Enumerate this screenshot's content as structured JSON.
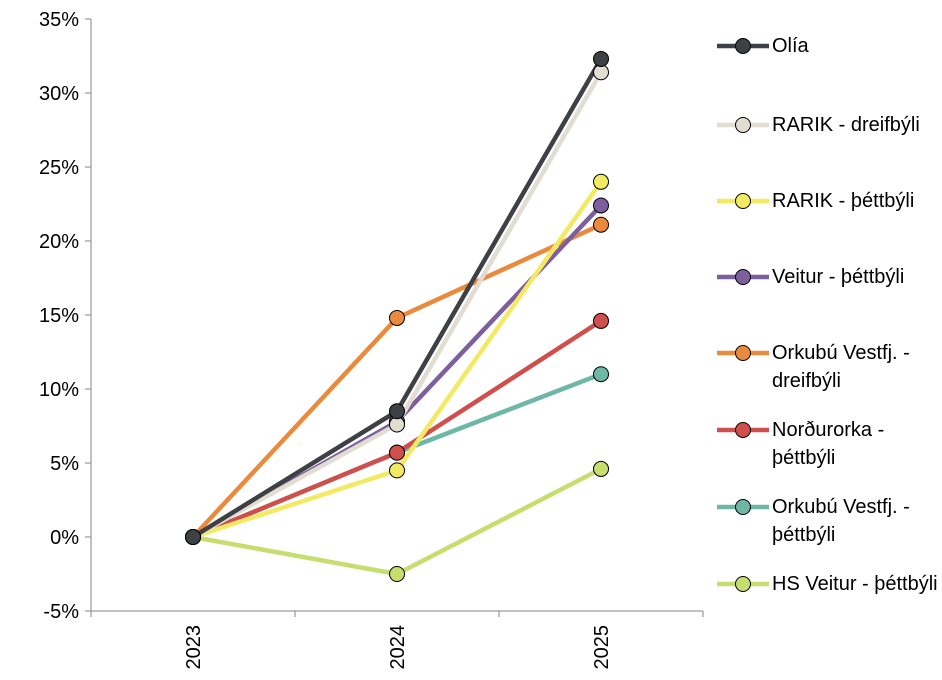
{
  "chart_data": {
    "type": "line",
    "categories": [
      "2023",
      "2024",
      "2025"
    ],
    "ylim": [
      -5,
      35
    ],
    "yticks": [
      "-5%",
      "0%",
      "5%",
      "10%",
      "15%",
      "20%",
      "25%",
      "30%",
      "35%"
    ],
    "ytick_values": [
      -5,
      0,
      5,
      10,
      15,
      20,
      25,
      30,
      35
    ],
    "grid": false,
    "legend_position": "right",
    "series": [
      {
        "name": "Olía",
        "color": "#3d4044",
        "values": [
          0,
          8.5,
          32.3
        ]
      },
      {
        "name": "RARIK - dreifbýli",
        "color": "#e2ddd2",
        "values": [
          0,
          7.6,
          31.4
        ]
      },
      {
        "name": "RARIK - þéttbýli",
        "color": "#f3ea63",
        "values": [
          0,
          4.5,
          24.0
        ]
      },
      {
        "name": "Veitur - þéttbýli",
        "color": "#7d5f9d",
        "values": [
          0,
          7.8,
          22.4
        ]
      },
      {
        "name": "Orkubú Vestfj. - dreifbýli",
        "color": "#ea8a3c",
        "values": [
          0,
          14.8,
          21.1
        ]
      },
      {
        "name": "Norðurorka - þéttbýli",
        "color": "#cf4f4c",
        "values": [
          0,
          5.7,
          14.6
        ]
      },
      {
        "name": "Orkubú Vestfj. - þéttbýli",
        "color": "#6eb7a6",
        "values": [
          0,
          5.7,
          11.0
        ]
      },
      {
        "name": "HS Veitur - þéttbýli",
        "color": "#c7dd6d",
        "values": [
          0,
          -2.5,
          4.6
        ]
      }
    ]
  }
}
